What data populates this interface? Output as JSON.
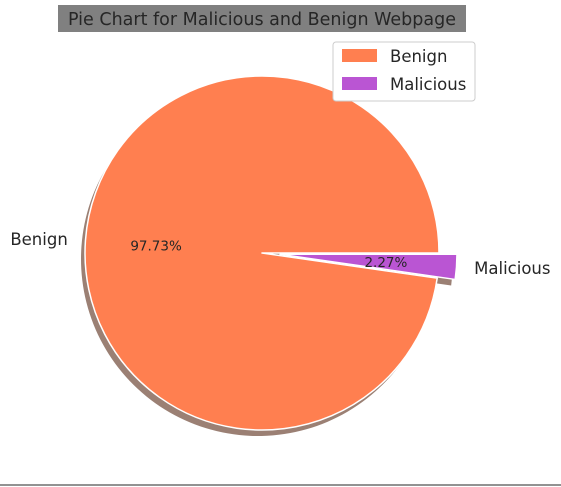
{
  "chart_data": {
    "type": "pie",
    "title": "Pie Chart for Malicious and Benign Webpage",
    "categories": [
      "Benign",
      "Malicious"
    ],
    "values": [
      97.73,
      2.27
    ],
    "value_labels": [
      "97.73%",
      "2.27%"
    ],
    "colors": [
      "#ff7f50",
      "#ba55d3"
    ],
    "exploded": [
      false,
      true
    ],
    "shadow": true,
    "legend": {
      "placement": "top-right",
      "entries": [
        "Benign",
        "Malicious"
      ]
    },
    "title_background": "#808080"
  }
}
